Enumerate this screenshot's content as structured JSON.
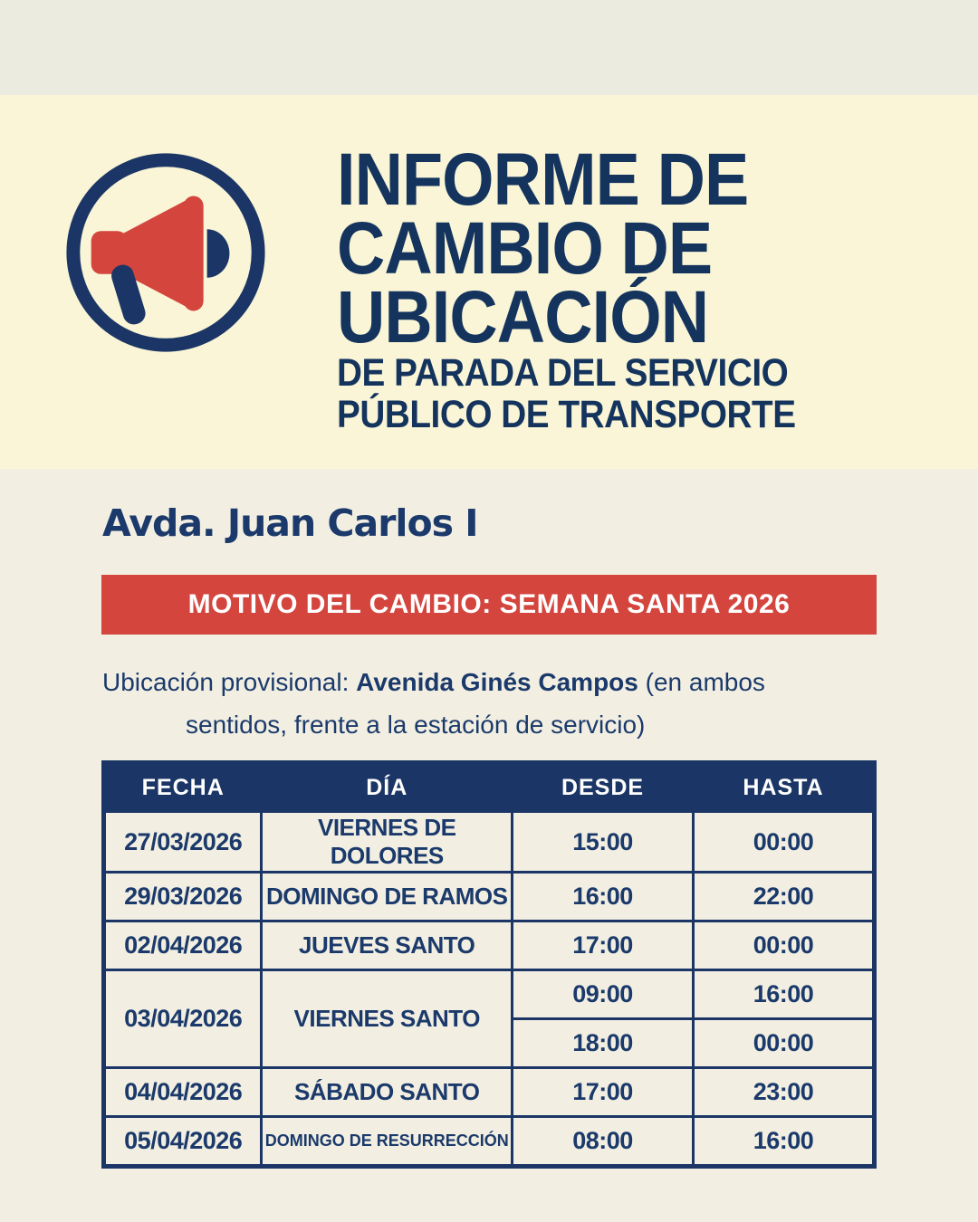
{
  "hero": {
    "icon": "megaphone-icon",
    "title_lines": [
      "INFORME DE",
      "CAMBIO DE",
      "UBICACIÓN"
    ],
    "subtitle_lines": [
      "DE PARADA DEL SERVICIO",
      "PÚBLICO DE TRANSPORTE"
    ]
  },
  "notice": {
    "street": "Avda. Juan Carlos I",
    "reason": "MOTIVO DEL CAMBIO: SEMANA SANTA 2026",
    "prov_label": "Ubicación provisional: ",
    "prov_location": "Avenida Ginés Campos",
    "prov_rest1": " (en ambos",
    "prov_rest2": "sentidos, frente a la estación de servicio)"
  },
  "schedule_table": {
    "columns": [
      "FECHA",
      "DÍA",
      "DESDE",
      "HASTA"
    ],
    "rows": [
      {
        "fecha": "27/03/2026",
        "dia": "VIERNES DE DOLORES",
        "times": [
          {
            "desde": "15:00",
            "hasta": "00:00"
          }
        ]
      },
      {
        "fecha": "29/03/2026",
        "dia": "DOMINGO DE RAMOS",
        "times": [
          {
            "desde": "16:00",
            "hasta": "22:00"
          }
        ]
      },
      {
        "fecha": "02/04/2026",
        "dia": "JUEVES SANTO",
        "times": [
          {
            "desde": "17:00",
            "hasta": "00:00"
          }
        ]
      },
      {
        "fecha": "03/04/2026",
        "dia": "VIERNES SANTO",
        "times": [
          {
            "desde": "09:00",
            "hasta": "16:00"
          },
          {
            "desde": "18:00",
            "hasta": "00:00"
          }
        ]
      },
      {
        "fecha": "04/04/2026",
        "dia": "SÁBADO SANTO",
        "times": [
          {
            "desde": "17:00",
            "hasta": "23:00"
          }
        ]
      },
      {
        "fecha": "05/04/2026",
        "dia": "DOMINGO DE RESURRECCIÓN",
        "times": [
          {
            "desde": "08:00",
            "hasta": "16:00"
          }
        ]
      }
    ]
  },
  "colors": {
    "navy": "#1B3666",
    "navy_title": "#14345E",
    "red": "#D4453E",
    "cream": "#FAF5D6",
    "beige_top": "#ECEBDF",
    "beige_body": "#F2EFE2",
    "white": "#FFFFFF"
  }
}
